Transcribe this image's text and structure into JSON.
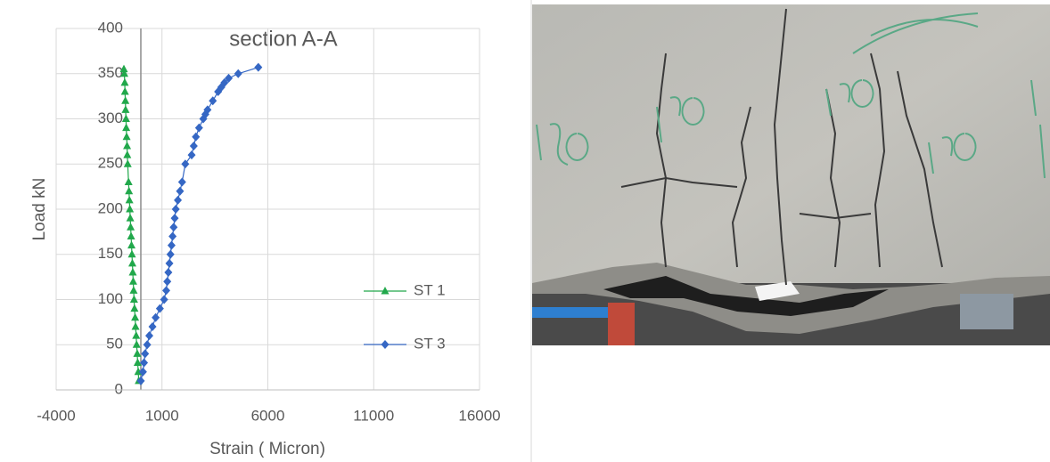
{
  "chart_data": {
    "type": "scatter",
    "lines": true,
    "title": "section A-A",
    "x_label": "Strain ( Micron)",
    "y_label": "Load kN",
    "xlim": [
      -4000,
      16000
    ],
    "xticks": [
      -4000,
      1000,
      6000,
      11000,
      16000
    ],
    "ylim": [
      0,
      400
    ],
    "yticks": [
      0,
      50,
      100,
      150,
      200,
      250,
      300,
      350,
      400
    ],
    "grid": true,
    "legend": "right",
    "series": [
      {
        "name": "ST 1",
        "color": "#21a84b",
        "marker": "triangle",
        "x": [
          -100,
          -120,
          -150,
          -170,
          -200,
          -220,
          -250,
          -270,
          -300,
          -320,
          -340,
          -360,
          -380,
          -400,
          -420,
          -440,
          -460,
          -480,
          -500,
          -520,
          -540,
          -560,
          -580,
          -620,
          -640,
          -650,
          -670,
          -690,
          -700,
          -720,
          -730,
          -750,
          -760,
          -780,
          -800
        ],
        "values": [
          10,
          20,
          30,
          40,
          50,
          60,
          70,
          80,
          90,
          100,
          110,
          120,
          130,
          140,
          150,
          160,
          170,
          180,
          190,
          200,
          210,
          220,
          230,
          250,
          260,
          270,
          280,
          290,
          300,
          310,
          320,
          330,
          340,
          350,
          355
        ]
      },
      {
        "name": "ST 3",
        "color": "#3567c4",
        "marker": "diamond",
        "x": [
          0,
          100,
          150,
          200,
          300,
          400,
          550,
          700,
          900,
          1100,
          1200,
          1250,
          1300,
          1350,
          1400,
          1450,
          1500,
          1550,
          1600,
          1650,
          1750,
          1850,
          1950,
          2100,
          2400,
          2500,
          2600,
          2750,
          2950,
          3050,
          3150,
          3400,
          3650,
          3800,
          3950,
          4150,
          4600,
          5550
        ],
        "values": [
          10,
          20,
          30,
          40,
          50,
          60,
          70,
          80,
          90,
          100,
          110,
          120,
          130,
          140,
          150,
          160,
          170,
          180,
          190,
          200,
          210,
          220,
          230,
          250,
          260,
          270,
          280,
          290,
          300,
          305,
          310,
          320,
          330,
          335,
          340,
          345,
          350,
          357
        ]
      }
    ]
  }
}
